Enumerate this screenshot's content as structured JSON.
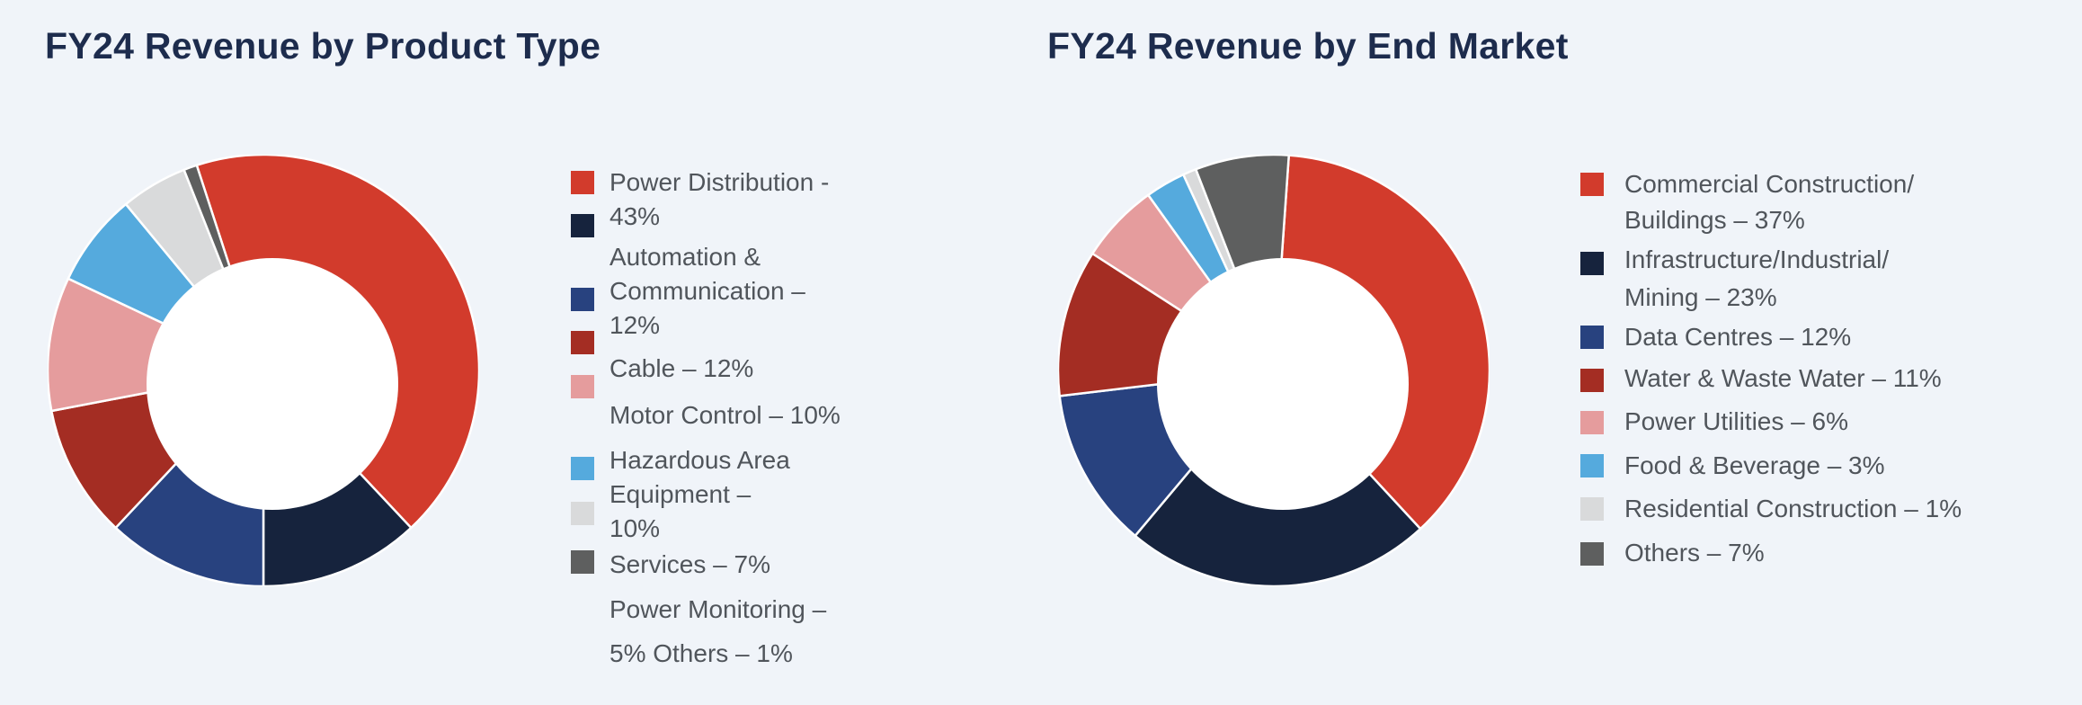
{
  "page": {
    "background_color": "#f0f4f9",
    "title_color": "#1d2c4d",
    "legend_text_color": "#50555b",
    "hole_color": "#ffffff"
  },
  "chart_data": [
    {
      "type": "pie",
      "subtype": "donut",
      "title": "FY24 Revenue by Product Type",
      "labels": [
        "Power Distribution",
        "Automation & Communication",
        "Cable",
        "Motor Control",
        "Hazardous Area Equipment",
        "Services",
        "Power Monitoring",
        "Others"
      ],
      "values": [
        43,
        12,
        12,
        10,
        10,
        7,
        5,
        1
      ],
      "unit": "%",
      "colors": [
        "#d23b2c",
        "#16233d",
        "#28427f",
        "#a42d23",
        "#e59c9d",
        "#55aadd",
        "#d9dadb",
        "#5e5f5f"
      ],
      "start_angle_deg": -18,
      "direction": "clockwise",
      "legend_position": "right",
      "legend_lines": [
        "Power Distribution -",
        "43%",
        "Automation &",
        "Communication –",
        "12%",
        "Cable – 12%",
        "Motor Control – 10%",
        "Hazardous Area",
        "Equipment –",
        "10%",
        "Services – 7%",
        "Power Monitoring –",
        "5% Others – 1%"
      ]
    },
    {
      "type": "pie",
      "subtype": "donut",
      "title": "FY24 Revenue by End Market",
      "labels": [
        "Commercial Construction/Buildings",
        "Infrastructure/Industrial/Mining",
        "Data Centres",
        "Water & Waste Water",
        "Power Utilities",
        "Food & Beverage",
        "Residential Construction",
        "Others"
      ],
      "values": [
        37,
        23,
        12,
        11,
        6,
        3,
        1,
        7
      ],
      "unit": "%",
      "colors": [
        "#d23b2c",
        "#16233d",
        "#28427f",
        "#a42d23",
        "#e59c9d",
        "#55aadd",
        "#d9dadb",
        "#5e5f5f"
      ],
      "start_angle_deg": 4,
      "direction": "clockwise",
      "legend_position": "right",
      "legend_lines": [
        "Commercial Construction/",
        "Buildings – 37%",
        "Infrastructure/Industrial/",
        "Mining – 23%",
        "Data Centres – 12%",
        "Water & Waste Water – 11%",
        "Power Utilities – 6%",
        "Food & Beverage – 3%",
        "Residential Construction – 1%",
        "Others – 7%"
      ]
    }
  ]
}
